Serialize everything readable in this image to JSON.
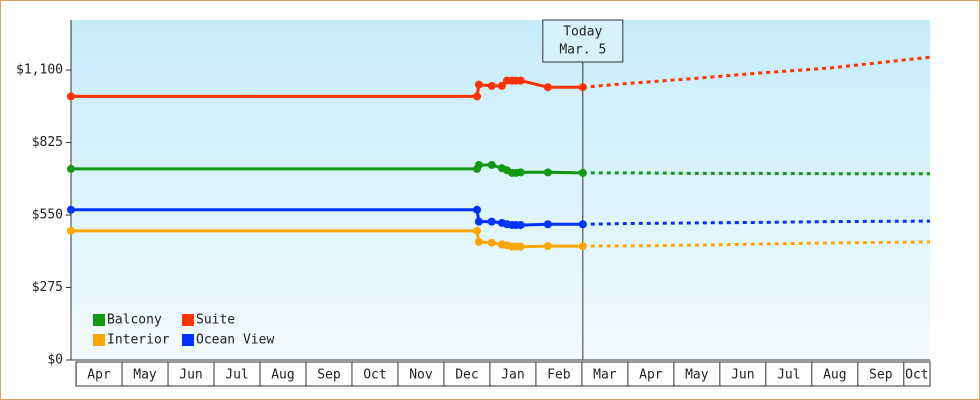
{
  "chart_data": {
    "type": "line",
    "x": [
      -0.11,
      8.72,
      8.76,
      9.04,
      9.26,
      9.37,
      9.48,
      9.57,
      9.67,
      10.26,
      11.02,
      12.04,
      13.57,
      14.87,
      16.39,
      18.57
    ],
    "xlim": [
      -0.11,
      18.57
    ],
    "xticks": [
      {
        "value": 0,
        "label": "Apr"
      },
      {
        "value": 1,
        "label": "May"
      },
      {
        "value": 2,
        "label": "Jun"
      },
      {
        "value": 3,
        "label": "Jul"
      },
      {
        "value": 4,
        "label": "Aug"
      },
      {
        "value": 5,
        "label": "Sep"
      },
      {
        "value": 6,
        "label": "Oct"
      },
      {
        "value": 7,
        "label": "Nov"
      },
      {
        "value": 8,
        "label": "Dec"
      },
      {
        "value": 9,
        "label": "Jan"
      },
      {
        "value": 10,
        "label": "Feb"
      },
      {
        "value": 11,
        "label": "Mar"
      },
      {
        "value": 12,
        "label": "Apr"
      },
      {
        "value": 13,
        "label": "May"
      },
      {
        "value": 14,
        "label": "Jun"
      },
      {
        "value": 15,
        "label": "Jul"
      },
      {
        "value": 16,
        "label": "Aug"
      },
      {
        "value": 17,
        "label": "Sep"
      },
      {
        "value": 18,
        "label": "Oct"
      }
    ],
    "ylim": [
      0,
      1290
    ],
    "yticks": [
      {
        "value": 0,
        "label": "$0"
      },
      {
        "value": 275,
        "label": "$275"
      },
      {
        "value": 550,
        "label": "$550"
      },
      {
        "value": 825,
        "label": "$825"
      },
      {
        "value": 1100,
        "label": "$1,100"
      }
    ],
    "series": [
      {
        "name": "Balcony",
        "color": "#119911",
        "values": [
          725,
          725,
          740,
          740,
          728,
          720,
          710,
          710,
          712,
          712,
          710,
          null,
          null,
          null,
          null,
          null
        ],
        "forecast": [
          null,
          null,
          null,
          null,
          null,
          null,
          null,
          null,
          null,
          null,
          710,
          710,
          708,
          708,
          707,
          707
        ]
      },
      {
        "name": "Suite",
        "color": "#ff3300",
        "values": [
          1000,
          1000,
          1045,
          1040,
          1040,
          1060,
          1060,
          1060,
          1060,
          1035,
          1035,
          null,
          null,
          null,
          null,
          null
        ],
        "forecast": [
          null,
          null,
          null,
          null,
          null,
          null,
          null,
          null,
          null,
          null,
          1035,
          1050,
          1070,
          1089,
          1108,
          1149
        ]
      },
      {
        "name": "Interior",
        "color": "#ffa500",
        "values": [
          490,
          490,
          448,
          445,
          438,
          435,
          430,
          430,
          430,
          432,
          432,
          null,
          null,
          null,
          null,
          null
        ],
        "forecast": [
          null,
          null,
          null,
          null,
          null,
          null,
          null,
          null,
          null,
          null,
          432,
          433,
          436,
          440,
          444,
          448
        ]
      },
      {
        "name": "Ocean View",
        "color": "#0033ff",
        "values": [
          570,
          570,
          525,
          525,
          520,
          515,
          512,
          512,
          512,
          515,
          515,
          null,
          null,
          null,
          null,
          null
        ],
        "forecast": [
          null,
          null,
          null,
          null,
          null,
          null,
          null,
          null,
          null,
          null,
          515,
          518,
          520,
          522,
          525,
          527
        ]
      }
    ],
    "annotation": {
      "lines": [
        "Today",
        "Mar. 5"
      ],
      "x": 11.02
    }
  }
}
